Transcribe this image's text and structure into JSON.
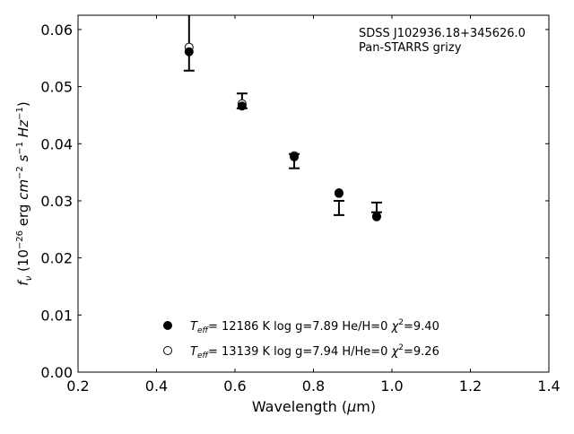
{
  "chart_data": {
    "type": "scatter",
    "title_lines": [
      "SDSS J102936.18+345626.0",
      "Pan-STARRS grizy"
    ],
    "xlabel": "Wavelength (μm)",
    "ylabel": "f_ν (10^-26 erg cm^-2 s^-1 Hz^-1)",
    "xlim": [
      0.2,
      1.4
    ],
    "ylim": [
      0,
      0.0625
    ],
    "xticks": [
      "0.2",
      "0.4",
      "0.6",
      "0.8",
      "1.0",
      "1.2",
      "1.4"
    ],
    "yticks": [
      "0.00",
      "0.01",
      "0.02",
      "0.03",
      "0.04",
      "0.05",
      "0.06"
    ],
    "grid": false,
    "legend_position": "bottom-center",
    "observed": {
      "x": [
        0.483,
        0.618,
        0.751,
        0.865,
        0.961
      ],
      "lower": [
        0.0528,
        0.0462,
        0.0357,
        0.0275,
        0.028
      ],
      "upper": [
        0.07,
        0.0488,
        0.0382,
        0.03,
        0.0297
      ]
    },
    "series": [
      {
        "name": "model-1",
        "marker": "filled-circle",
        "legend": {
          "teff_sym": "T",
          "teff_sub": "eff",
          "rest": "= 12186 K  log g=7.89  He/H=0  ",
          "chi": "χ",
          "chi_sup": "2",
          "chi_val": "=9.40"
        },
        "x": [
          0.483,
          0.618,
          0.751,
          0.865,
          0.961
        ],
        "y": [
          0.0561,
          0.0466,
          0.0377,
          0.0313,
          0.0272
        ]
      },
      {
        "name": "model-2",
        "marker": "open-circle",
        "legend": {
          "teff_sym": "T",
          "teff_sub": "eff",
          "rest": "= 13139 K  log g=7.94  H/He=0  ",
          "chi": "χ",
          "chi_sup": "2",
          "chi_val": "=9.26"
        },
        "x": [
          0.483,
          0.618,
          0.751,
          0.865,
          0.961
        ],
        "y": [
          0.0569,
          0.047,
          0.0379,
          0.0314,
          0.0273
        ]
      }
    ]
  }
}
